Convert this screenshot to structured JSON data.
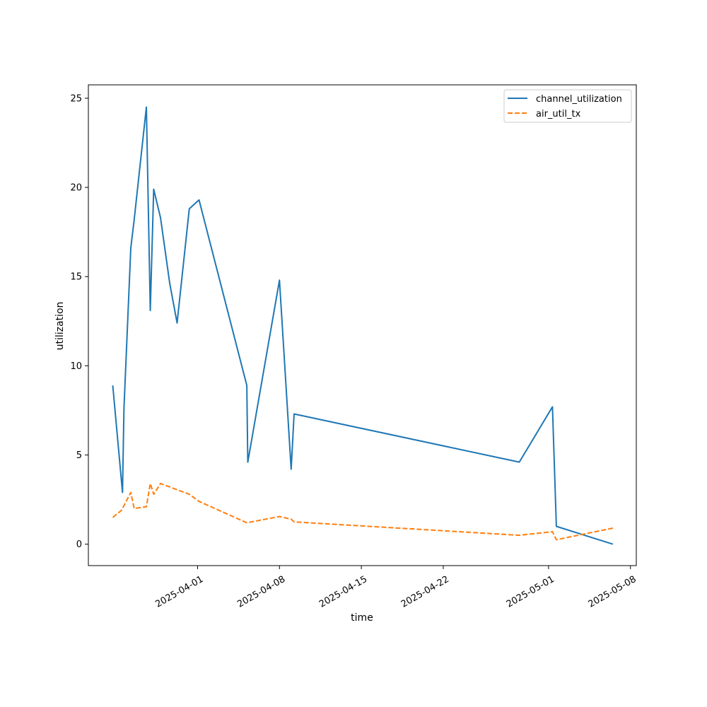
{
  "chart_data": {
    "type": "line",
    "xlabel": "time",
    "ylabel": "utilization",
    "x_type": "date",
    "xlim": [
      "2025-03-22T16:00",
      "2025-05-08T12:00"
    ],
    "ylim": [
      -1.2,
      25.75
    ],
    "x_ticks": [
      "2025-04-01",
      "2025-04-08",
      "2025-04-15",
      "2025-04-22",
      "2025-05-01",
      "2025-05-08"
    ],
    "y_ticks": [
      0,
      5,
      10,
      15,
      20,
      25
    ],
    "grid": false,
    "legend": {
      "position": "top-right"
    },
    "series": [
      {
        "name": "channel_utilization",
        "color": "#1f77b4",
        "style": "solid",
        "points": [
          [
            "2025-03-24T18:00",
            8.9
          ],
          [
            "2025-03-25T14:00",
            2.9
          ],
          [
            "2025-03-25T17:00",
            7.6
          ],
          [
            "2025-03-26T07:00",
            16.6
          ],
          [
            "2025-03-26T14:00",
            18.2
          ],
          [
            "2025-03-27T15:00",
            24.5
          ],
          [
            "2025-03-27T23:00",
            13.1
          ],
          [
            "2025-03-28T06:00",
            19.9
          ],
          [
            "2025-03-28T20:00",
            18.3
          ],
          [
            "2025-03-29T15:00",
            14.6
          ],
          [
            "2025-03-30T06:00",
            12.4
          ],
          [
            "2025-03-31T07:00",
            18.8
          ],
          [
            "2025-04-01T03:00",
            19.3
          ],
          [
            "2025-04-05T05:00",
            8.9
          ],
          [
            "2025-04-05T07:00",
            4.6
          ],
          [
            "2025-04-08T00:00",
            14.8
          ],
          [
            "2025-04-09T00:00",
            4.2
          ],
          [
            "2025-04-09T06:00",
            7.3
          ],
          [
            "2025-04-28T12:00",
            4.6
          ],
          [
            "2025-05-01T08:00",
            7.7
          ],
          [
            "2025-05-01T16:00",
            1.0
          ],
          [
            "2025-05-06T12:00",
            0.0
          ]
        ]
      },
      {
        "name": "air_util_tx",
        "color": "#ff7f0e",
        "style": "dashed",
        "points": [
          [
            "2025-03-24T18:00",
            1.5
          ],
          [
            "2025-03-25T12:00",
            1.9
          ],
          [
            "2025-03-26T07:00",
            2.9
          ],
          [
            "2025-03-26T14:00",
            2.0
          ],
          [
            "2025-03-27T15:00",
            2.1
          ],
          [
            "2025-03-27T23:00",
            3.4
          ],
          [
            "2025-03-28T06:00",
            2.8
          ],
          [
            "2025-03-28T20:00",
            3.4
          ],
          [
            "2025-03-31T07:00",
            2.8
          ],
          [
            "2025-04-01T03:00",
            2.4
          ],
          [
            "2025-04-05T05:00",
            1.2
          ],
          [
            "2025-04-08T00:00",
            1.55
          ],
          [
            "2025-04-09T00:00",
            1.4
          ],
          [
            "2025-04-09T06:00",
            1.25
          ],
          [
            "2025-04-28T12:00",
            0.5
          ],
          [
            "2025-05-01T08:00",
            0.7
          ],
          [
            "2025-05-01T16:00",
            0.25
          ],
          [
            "2025-05-06T12:00",
            0.9
          ]
        ]
      }
    ]
  }
}
